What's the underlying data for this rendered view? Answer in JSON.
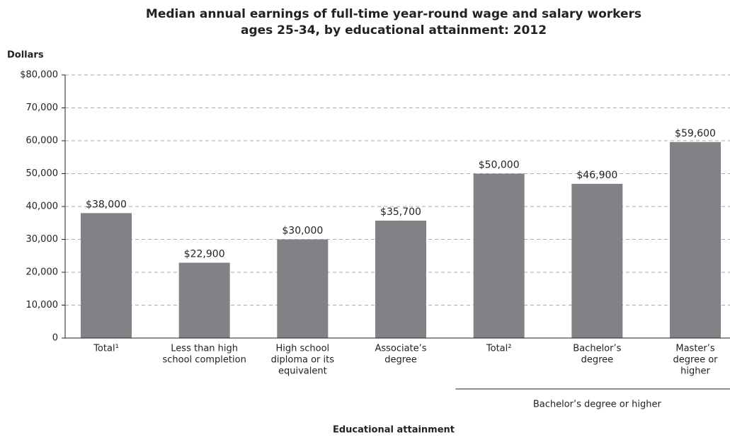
{
  "chart_data": {
    "type": "bar",
    "title": [
      "Median annual earnings of full-time year-round wage and salary workers",
      "ages 25-34, by educational attainment: 2012"
    ],
    "y_label": "Dollars",
    "x_label": "Educational attainment",
    "categories": [
      [
        "Total¹"
      ],
      [
        "Less than high",
        "school completion"
      ],
      [
        "High school",
        "diploma or its",
        "equivalent"
      ],
      [
        "Associate’s",
        "degree"
      ],
      [
        "Total²"
      ],
      [
        "Bachelor’s",
        "degree"
      ],
      [
        "Master’s",
        "degree or",
        "higher"
      ]
    ],
    "values": [
      38000,
      22900,
      30000,
      35700,
      50000,
      46900,
      59600
    ],
    "value_labels": [
      "$38,000",
      "$22,900",
      "$30,000",
      "$35,700",
      "$50,000",
      "$46,900",
      "$59,600"
    ],
    "color": "#818285",
    "ylim": [
      0,
      80000
    ],
    "yticks": [
      0,
      {
        "value": 10000,
        "label": "10,000"
      },
      {
        "value": 20000,
        "label": "20,000"
      },
      {
        "value": 30000,
        "label": "30,000"
      },
      {
        "value": 40000,
        "label": "40,000"
      },
      {
        "value": 50000,
        "label": "50,000"
      },
      {
        "value": 60000,
        "label": "60,000"
      },
      {
        "value": 70000,
        "label": "70,000"
      },
      {
        "value": 80000,
        "label": "$80,000"
      }
    ],
    "grid": true,
    "annotations": [
      {
        "text": "Bachelor’s degree or higher",
        "categories": [
          4,
          6
        ]
      }
    ]
  }
}
